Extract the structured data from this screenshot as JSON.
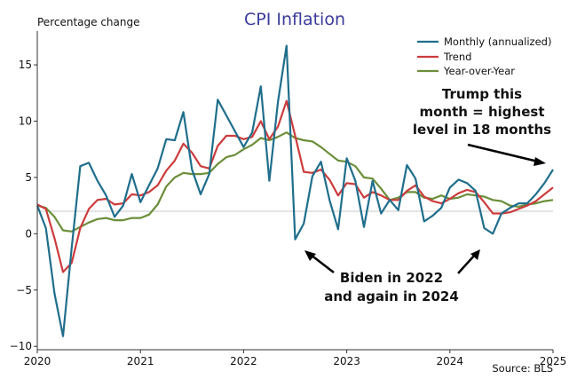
{
  "chart_data": {
    "type": "line",
    "title": "CPI Inflation",
    "ylabel": "Percentage change",
    "xlabel": "",
    "source": "Source: BLS",
    "xlim": [
      "2020-01",
      "2025-01"
    ],
    "ylim": [
      -10.3,
      18
    ],
    "xticks": [
      {
        "date": "2020-01",
        "label": "2020"
      },
      {
        "date": "2021-01",
        "label": "2021"
      },
      {
        "date": "2022-01",
        "label": "2022"
      },
      {
        "date": "2023-01",
        "label": "2023"
      },
      {
        "date": "2024-01",
        "label": "2024"
      },
      {
        "date": "2025-01",
        "label": "2025"
      }
    ],
    "yticks": [
      {
        "value": -10,
        "label": "−10"
      },
      {
        "value": -5,
        "label": "−5"
      },
      {
        "value": 0,
        "label": "0"
      },
      {
        "value": 5,
        "label": "5"
      },
      {
        "value": 10,
        "label": "10"
      },
      {
        "value": 15,
        "label": "15"
      }
    ],
    "reference_line": 2,
    "x": [
      "2020-01",
      "2020-02",
      "2020-03",
      "2020-04",
      "2020-05",
      "2020-06",
      "2020-07",
      "2020-08",
      "2020-09",
      "2020-10",
      "2020-11",
      "2020-12",
      "2021-01",
      "2021-02",
      "2021-03",
      "2021-04",
      "2021-05",
      "2021-06",
      "2021-07",
      "2021-08",
      "2021-09",
      "2021-10",
      "2021-11",
      "2021-12",
      "2022-01",
      "2022-02",
      "2022-03",
      "2022-04",
      "2022-05",
      "2022-06",
      "2022-07",
      "2022-08",
      "2022-09",
      "2022-10",
      "2022-11",
      "2022-12",
      "2023-01",
      "2023-02",
      "2023-03",
      "2023-04",
      "2023-05",
      "2023-06",
      "2023-07",
      "2023-08",
      "2023-09",
      "2023-10",
      "2023-11",
      "2023-12",
      "2024-01",
      "2024-02",
      "2024-03",
      "2024-04",
      "2024-05",
      "2024-06",
      "2024-07",
      "2024-08",
      "2024-09",
      "2024-10",
      "2024-11",
      "2024-12",
      "2025-01"
    ],
    "series": [
      {
        "name": "Monthly (annualized)",
        "color": "#1f6e8c",
        "values": [
          2.5,
          0.5,
          -5.3,
          -9.1,
          -1.3,
          6.0,
          6.3,
          4.7,
          3.4,
          1.5,
          2.5,
          5.3,
          2.8,
          4.3,
          5.8,
          8.4,
          8.3,
          10.8,
          5.7,
          3.5,
          5.3,
          11.9,
          10.5,
          9.1,
          7.7,
          9.0,
          13.1,
          4.7,
          11.7,
          16.7,
          -0.5,
          0.9,
          5.1,
          6.4,
          3.0,
          0.4,
          6.7,
          4.7,
          0.6,
          4.7,
          1.8,
          3.0,
          2.1,
          6.1,
          4.9,
          1.1,
          1.6,
          2.3,
          4.1,
          4.8,
          4.5,
          3.8,
          0.5,
          0.0,
          1.8,
          2.3,
          2.7,
          2.7,
          3.5,
          4.5,
          5.7
        ]
      },
      {
        "name": "Trend",
        "color": "#cc3c3c",
        "values": [
          2.6,
          2.2,
          -0.4,
          -3.4,
          -2.6,
          0.5,
          2.2,
          3.0,
          3.1,
          2.6,
          2.7,
          3.5,
          3.4,
          3.7,
          4.3,
          5.6,
          6.5,
          8.0,
          7.2,
          6.0,
          5.8,
          7.8,
          8.7,
          8.7,
          8.4,
          8.6,
          10.0,
          8.4,
          9.5,
          11.8,
          8.7,
          5.5,
          5.4,
          5.7,
          4.8,
          3.4,
          4.5,
          4.4,
          3.2,
          3.7,
          3.4,
          3.0,
          3.0,
          3.8,
          4.3,
          3.3,
          2.9,
          2.7,
          3.1,
          3.6,
          3.9,
          3.7,
          2.8,
          1.8,
          1.8,
          1.9,
          2.2,
          2.5,
          2.9,
          3.5,
          4.1
        ]
      },
      {
        "name": "Year-over-Year",
        "color": "#6b8e3a",
        "values": [
          2.5,
          2.3,
          1.5,
          0.3,
          0.2,
          0.6,
          1.0,
          1.3,
          1.4,
          1.2,
          1.2,
          1.4,
          1.4,
          1.7,
          2.6,
          4.2,
          5.0,
          5.4,
          5.3,
          5.3,
          5.4,
          6.2,
          6.8,
          7.0,
          7.5,
          7.9,
          8.5,
          8.3,
          8.6,
          9.0,
          8.5,
          8.3,
          8.2,
          7.7,
          7.1,
          6.5,
          6.4,
          6.0,
          5.0,
          4.9,
          4.0,
          3.0,
          3.2,
          3.7,
          3.7,
          3.2,
          3.1,
          3.4,
          3.1,
          3.2,
          3.5,
          3.4,
          3.3,
          3.0,
          2.9,
          2.5,
          2.4,
          2.6,
          2.7,
          2.9,
          3.0
        ]
      }
    ],
    "legend_position": "top-right",
    "annotations": [
      {
        "text": [
          "Trump this",
          "month = highest",
          "level in 18 months"
        ],
        "points_to": "2025-01"
      },
      {
        "text": [
          "Biden in 2022",
          "and again in 2024"
        ],
        "points_to": [
          "2022-07",
          "2024-05"
        ]
      }
    ]
  }
}
